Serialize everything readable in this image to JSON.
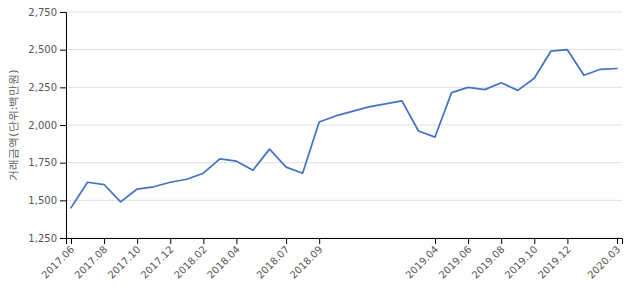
{
  "chart_data": {
    "type": "line",
    "y_label": "거래금액(단위:백만원)",
    "categories": [
      "2017.06",
      null,
      "2017.08",
      null,
      "2017.10",
      null,
      "2017.12",
      null,
      "2018.02",
      null,
      "2018.04",
      null,
      null,
      "2018.07",
      null,
      "2018.09",
      null,
      null,
      null,
      null,
      null,
      null,
      "2019.04",
      null,
      "2019.06",
      null,
      "2019.08",
      null,
      "2019.10",
      null,
      "2019.12",
      null,
      null,
      "2020.03"
    ],
    "values": [
      1450,
      1620,
      1605,
      1490,
      1575,
      1590,
      1620,
      1640,
      1680,
      1775,
      1760,
      1700,
      1840,
      1720,
      1680,
      2020,
      2060,
      2090,
      2120,
      2140,
      2160,
      1960,
      1920,
      2215,
      2250,
      2235,
      2280,
      2230,
      2310,
      2490,
      2500,
      2330,
      2370,
      2375
    ],
    "color": "#4472c4",
    "ylim": [
      1250,
      2750
    ],
    "yticks": [
      {
        "value": 1250,
        "label": "1,250"
      },
      {
        "value": 1500,
        "label": "1,500"
      },
      {
        "value": 1750,
        "label": "1,750"
      },
      {
        "value": 2000,
        "label": "2,000"
      },
      {
        "value": 2250,
        "label": "2,250"
      },
      {
        "value": 2500,
        "label": "2,500"
      },
      {
        "value": 2750,
        "label": "2,750"
      }
    ],
    "grid": true
  }
}
